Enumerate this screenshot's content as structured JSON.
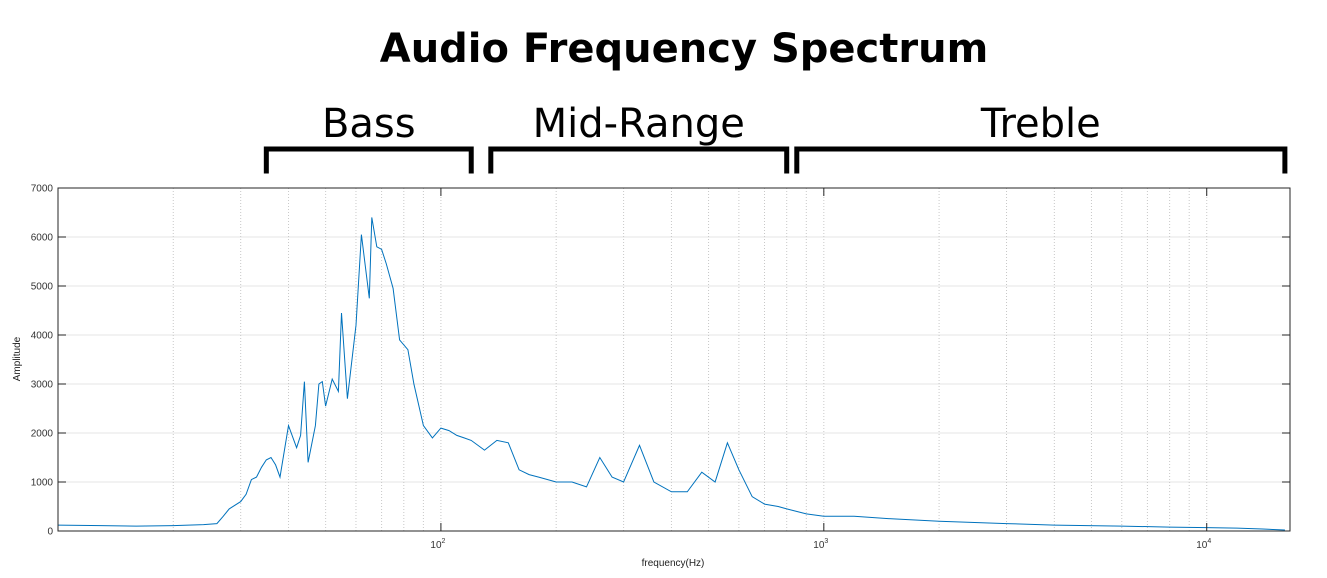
{
  "chart_data": {
    "type": "line",
    "title": "Audio Frequency Spectrum",
    "xlabel": "frequency(Hz)",
    "ylabel": "Amplitude",
    "xscale": "log",
    "xlim": [
      10,
      16500
    ],
    "ylim": [
      0,
      7000
    ],
    "yticks": [
      0,
      1000,
      2000,
      3000,
      4000,
      5000,
      6000,
      7000
    ],
    "xticks": [
      {
        "value": 100,
        "base": "10",
        "exp": "2"
      },
      {
        "value": 1000,
        "base": "10",
        "exp": "3"
      },
      {
        "value": 10000,
        "base": "10",
        "exp": "4"
      }
    ],
    "grid": true,
    "color": "#0072bd",
    "bands": [
      {
        "label": "Bass",
        "from": 35,
        "to": 120
      },
      {
        "label": "Mid-Range",
        "from": 135,
        "to": 800
      },
      {
        "label": "Treble",
        "from": 850,
        "to": 16000
      }
    ],
    "series": [
      {
        "points": [
          [
            10,
            120
          ],
          [
            13,
            110
          ],
          [
            16,
            100
          ],
          [
            20,
            110
          ],
          [
            24,
            130
          ],
          [
            26,
            150
          ],
          [
            27,
            300
          ],
          [
            28,
            450
          ],
          [
            30,
            600
          ],
          [
            31,
            750
          ],
          [
            32,
            1050
          ],
          [
            33,
            1100
          ],
          [
            34,
            1300
          ],
          [
            35,
            1450
          ],
          [
            36,
            1500
          ],
          [
            37,
            1350
          ],
          [
            38,
            1100
          ],
          [
            40,
            2150
          ],
          [
            42,
            1700
          ],
          [
            43,
            1950
          ],
          [
            44,
            3050
          ],
          [
            45,
            1400
          ],
          [
            47,
            2150
          ],
          [
            48,
            3000
          ],
          [
            49,
            3050
          ],
          [
            50,
            2550
          ],
          [
            52,
            3100
          ],
          [
            54,
            2850
          ],
          [
            55,
            4450
          ],
          [
            57,
            2700
          ],
          [
            60,
            4200
          ],
          [
            62,
            6050
          ],
          [
            65,
            4750
          ],
          [
            66,
            6400
          ],
          [
            68,
            5800
          ],
          [
            70,
            5750
          ],
          [
            72,
            5450
          ],
          [
            75,
            4950
          ],
          [
            78,
            3900
          ],
          [
            82,
            3700
          ],
          [
            85,
            3000
          ],
          [
            90,
            2150
          ],
          [
            95,
            1900
          ],
          [
            100,
            2100
          ],
          [
            105,
            2050
          ],
          [
            110,
            1950
          ],
          [
            115,
            1900
          ],
          [
            120,
            1850
          ],
          [
            130,
            1650
          ],
          [
            140,
            1850
          ],
          [
            150,
            1800
          ],
          [
            160,
            1250
          ],
          [
            170,
            1150
          ],
          [
            180,
            1100
          ],
          [
            200,
            1000
          ],
          [
            220,
            1000
          ],
          [
            240,
            900
          ],
          [
            260,
            1500
          ],
          [
            280,
            1100
          ],
          [
            300,
            1000
          ],
          [
            330,
            1750
          ],
          [
            360,
            1000
          ],
          [
            400,
            800
          ],
          [
            440,
            800
          ],
          [
            480,
            1200
          ],
          [
            520,
            1000
          ],
          [
            560,
            1800
          ],
          [
            600,
            1250
          ],
          [
            650,
            700
          ],
          [
            700,
            550
          ],
          [
            760,
            500
          ],
          [
            800,
            450
          ],
          [
            900,
            350
          ],
          [
            1000,
            300
          ],
          [
            1200,
            300
          ],
          [
            1500,
            250
          ],
          [
            2000,
            200
          ],
          [
            3000,
            150
          ],
          [
            4000,
            120
          ],
          [
            6000,
            100
          ],
          [
            8000,
            80
          ],
          [
            10000,
            70
          ],
          [
            12000,
            60
          ],
          [
            14000,
            40
          ],
          [
            16000,
            20
          ]
        ]
      }
    ]
  }
}
